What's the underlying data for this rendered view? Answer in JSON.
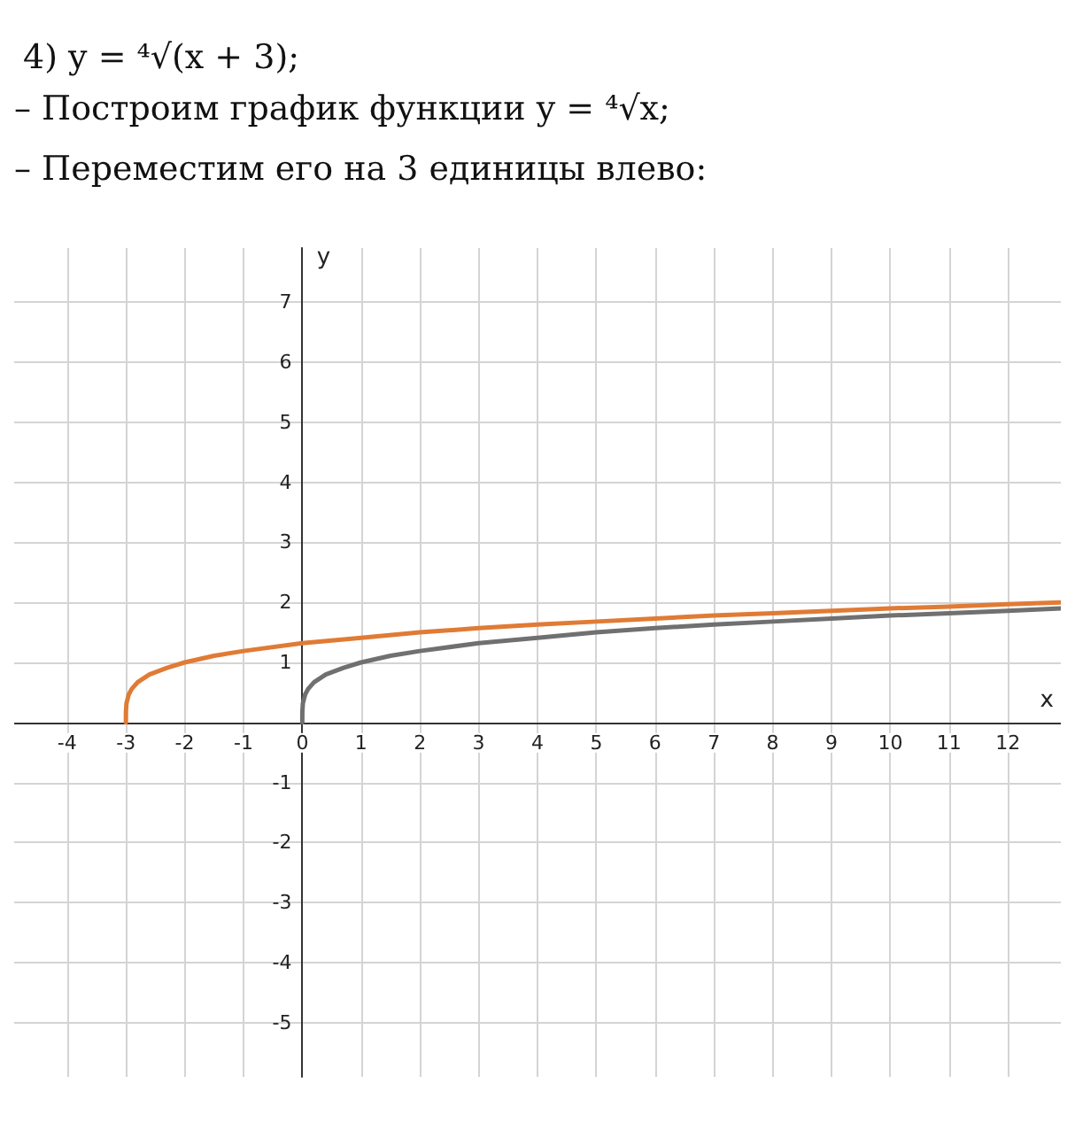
{
  "chart_data": {
    "type": "line",
    "title": "4) y = ⁴√(x + 3);",
    "annotations": [
      "– Построим график функции y = ⁴√x;",
      "– Переместим его на 3 единицы влево:"
    ],
    "xlabel": "x",
    "ylabel": "y",
    "xlim": [
      -4.9,
      12.9
    ],
    "ylim": [
      -5.9,
      7.9
    ],
    "xticks": [
      -4,
      -3,
      -2,
      -1,
      0,
      1,
      2,
      3,
      4,
      5,
      6,
      7,
      8,
      9,
      10,
      11,
      12
    ],
    "yticks": [
      -5,
      -4,
      -3,
      -2,
      -1,
      1,
      2,
      3,
      4,
      5,
      6,
      7
    ],
    "grid": true,
    "series": [
      {
        "color": "#707070",
        "x": [
          0,
          0.001,
          0.01,
          0.05,
          0.1,
          0.2,
          0.4,
          0.7,
          1,
          1.5,
          2,
          3,
          4,
          5,
          6,
          7,
          8,
          9,
          10,
          11,
          12,
          12.9
        ],
        "values": [
          0,
          0.18,
          0.32,
          0.47,
          0.56,
          0.67,
          0.8,
          0.91,
          1,
          1.11,
          1.19,
          1.32,
          1.41,
          1.5,
          1.57,
          1.63,
          1.68,
          1.73,
          1.78,
          1.82,
          1.86,
          1.9
        ]
      },
      {
        "color": "#e07b35",
        "x": [
          -3,
          -2.999,
          -2.99,
          -2.95,
          -2.9,
          -2.8,
          -2.6,
          -2.3,
          -2,
          -1.5,
          -1,
          0,
          1,
          2,
          3,
          4,
          5,
          6,
          7,
          8,
          9,
          10,
          11,
          12,
          12.9
        ],
        "values": [
          0,
          0.18,
          0.32,
          0.47,
          0.56,
          0.67,
          0.8,
          0.91,
          1,
          1.11,
          1.19,
          1.32,
          1.41,
          1.5,
          1.57,
          1.63,
          1.68,
          1.73,
          1.78,
          1.82,
          1.86,
          1.9,
          1.93,
          1.97,
          2
        ]
      }
    ]
  }
}
